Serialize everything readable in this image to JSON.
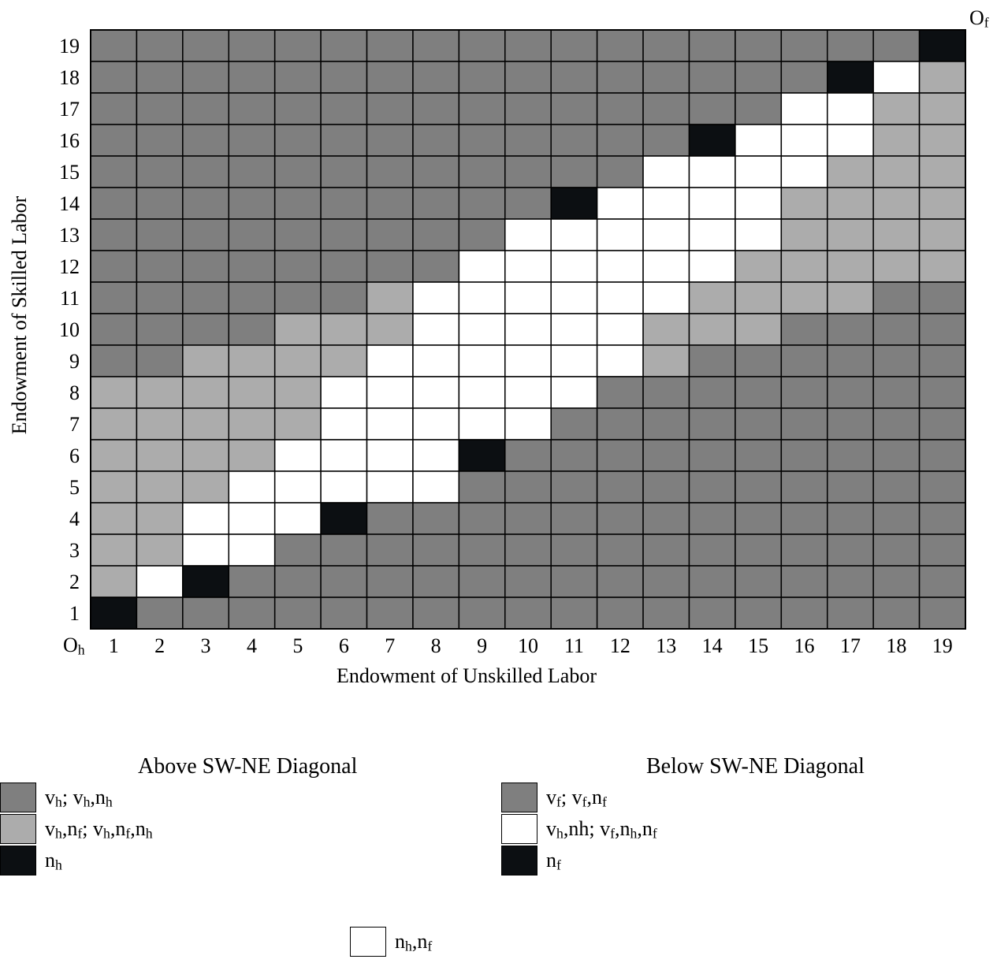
{
  "chart_data": {
    "type": "heatmap",
    "xlabel": "Endowment of Unskilled Labor",
    "ylabel": "Endowment of Skilled Labor",
    "origin_home_label": "O",
    "origin_home_sub": "h",
    "origin_foreign_label": "O",
    "origin_foreign_sub": "f",
    "x_ticks": [
      "1",
      "2",
      "3",
      "4",
      "5",
      "6",
      "7",
      "8",
      "9",
      "10",
      "11",
      "12",
      "13",
      "14",
      "15",
      "16",
      "17",
      "18",
      "19"
    ],
    "y_ticks": [
      "1",
      "2",
      "3",
      "4",
      "5",
      "6",
      "7",
      "8",
      "9",
      "10",
      "11",
      "12",
      "13",
      "14",
      "15",
      "16",
      "17",
      "18",
      "19"
    ],
    "grid": true,
    "colors": {
      "D": "#7f7f7f",
      "L": "#acacac",
      "B": "#0c0f12",
      "W": "#ffffff"
    },
    "rows_top_to_bottom": [
      "DDDDDDDDDDDDDDDDDDB",
      "DDDDDDDDDDDDDDDDBWL",
      "DDDDDDDDDDDDDDDWWLL",
      "DDDDDDDDDDDDDBWWWLL",
      "DDDDDDDDDDDDWWWWLLL",
      "DDDDDDDDDDBWWWWLLLL",
      "DDDDDDDDDWWWWWWLLLL",
      "DDDDDDDDWWWWWWLLLLL",
      "DDDDDDLWWWWWWLLLLDD",
      "DDDDLLLWWWWWLLLDDDD",
      "DDLLLLWWWWWWLDDDDDD",
      "LLLLLWWWWWWDDDDDDDD",
      "LLLLLWWWWWDDDDDDDDD",
      "LLLLWWWWBDDDDDDDDDD",
      "LLLWWWWWDDDDDDDDDDD",
      "LLWWWBDDDDDDDDDDDDD",
      "LLWWDDDDDDDDDDDDDDD",
      "LWBDDDDDDDDDDDDDDDD",
      "BDDDDDDDDDDDDDDDDDD"
    ]
  },
  "legend": {
    "above_title": "Above SW-NE Diagonal",
    "below_title": "Below SW-NE Diagonal",
    "above_items": [
      {
        "color": "#7f7f7f",
        "label_html": "v<sub>h</sub>; v<sub>h</sub>,n<sub>h</sub>"
      },
      {
        "color": "#acacac",
        "label_html": "v<sub>h</sub>,n<sub>f</sub>; v<sub>h</sub>,n<sub>f</sub>,n<sub>h</sub>"
      },
      {
        "color": "#0c0f12",
        "label_html": "n<sub>h</sub>"
      }
    ],
    "below_items": [
      {
        "color": "#7f7f7f",
        "label_html": "v<sub>f</sub>; v<sub>f</sub>,n<sub>f</sub>"
      },
      {
        "color": "#ffffff",
        "label_html": "v<sub>h</sub>,nh; v<sub>f</sub>,n<sub>h</sub>,n<sub>f</sub>"
      },
      {
        "color": "#0c0f12",
        "label_html": "n<sub>f</sub>"
      }
    ],
    "shared_item": {
      "color": "#ffffff",
      "label_html": "n<sub>h</sub>,n<sub>f</sub>"
    }
  }
}
